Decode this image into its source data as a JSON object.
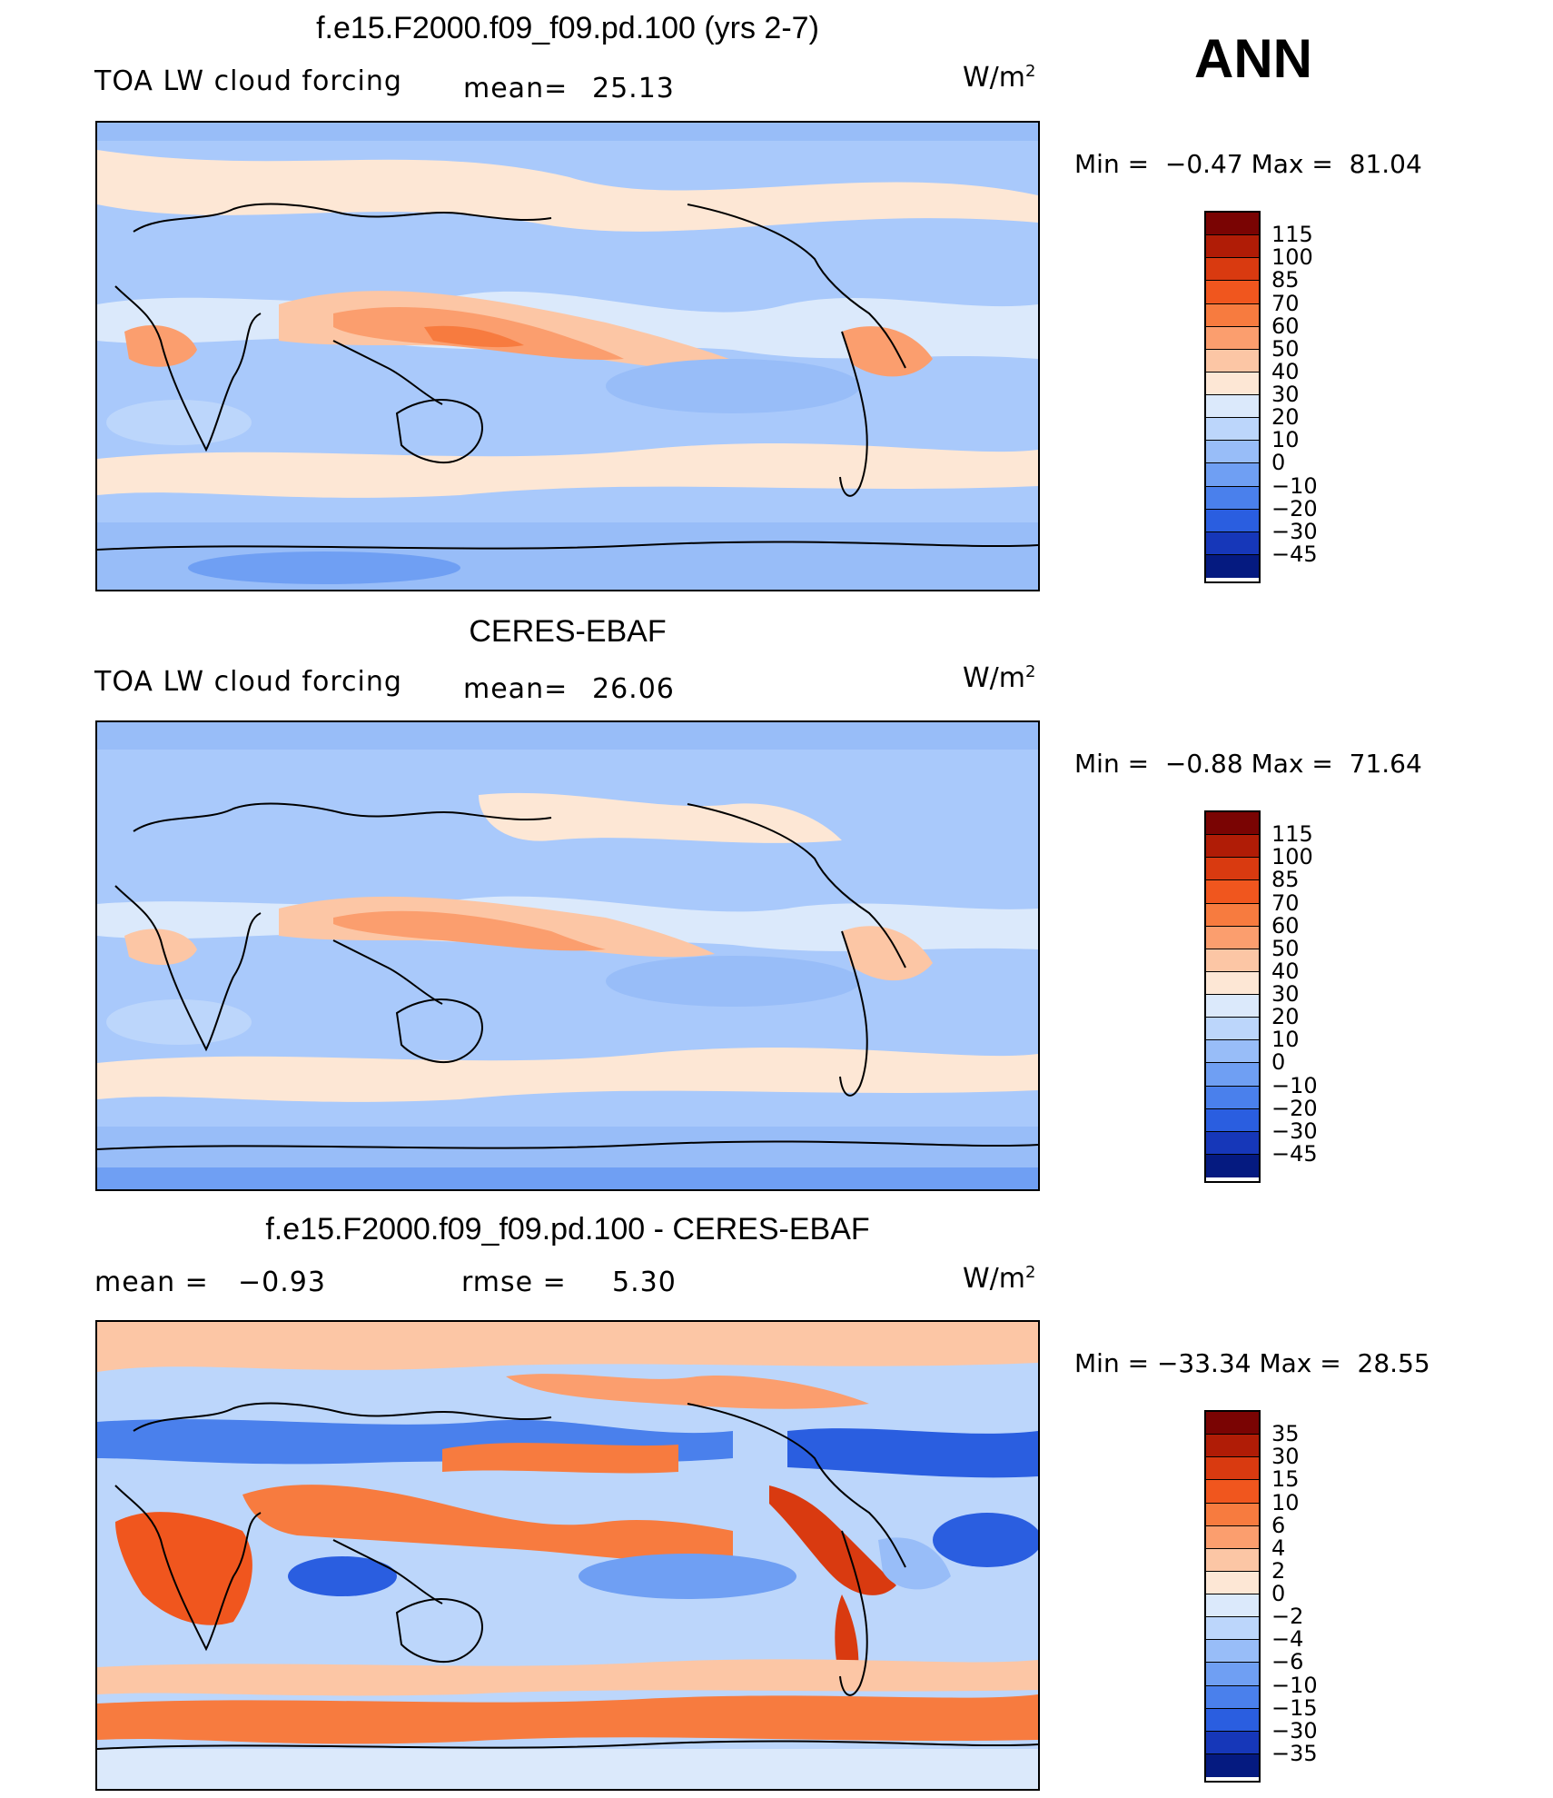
{
  "season": "ANN",
  "units_base": "W/m",
  "units_exp": "2",
  "panels": [
    {
      "title": "f.e15.F2000.f09_f09.pd.100 (yrs 2-7)",
      "left_label": "TOA LW cloud forcing",
      "stat_label": "mean=",
      "stat_value": "25.13",
      "min_label": "Min =",
      "min_value": "−0.47",
      "max_label": "Max =",
      "max_value": "81.04",
      "colorbar_labels": [
        "115",
        "100",
        "85",
        "70",
        "60",
        "50",
        "40",
        "30",
        "20",
        "10",
        "0",
        "−10",
        "−20",
        "−30",
        "−45"
      ]
    },
    {
      "title": "CERES-EBAF",
      "left_label": "TOA LW cloud forcing",
      "stat_label": "mean=",
      "stat_value": "26.06",
      "min_label": "Min =",
      "min_value": "−0.88",
      "max_label": "Max =",
      "max_value": "71.64",
      "colorbar_labels": [
        "115",
        "100",
        "85",
        "70",
        "60",
        "50",
        "40",
        "30",
        "20",
        "10",
        "0",
        "−10",
        "−20",
        "−30",
        "−45"
      ]
    },
    {
      "title": "f.e15.F2000.f09_f09.pd.100 - CERES-EBAF",
      "left_label": "mean =",
      "left_value": "−0.93",
      "stat_label": "rmse =",
      "stat_value": "5.30",
      "min_label": "Min =",
      "min_value": "−33.34",
      "max_label": "Max =",
      "max_value": "28.55",
      "colorbar_labels": [
        "35",
        "30",
        "15",
        "10",
        "6",
        "4",
        "2",
        "0",
        "−2",
        "−4",
        "−6",
        "−10",
        "−15",
        "−30",
        "−35"
      ]
    }
  ],
  "colors": {
    "ramp": [
      "#7a0403",
      "#b01c06",
      "#d93a10",
      "#f0561e",
      "#f77b3f",
      "#fb9e6e",
      "#fcc6a5",
      "#fde7d5",
      "#dbe9fb",
      "#bcd6fb",
      "#98bdf8",
      "#6f9ff3",
      "#4a80ec",
      "#2a5ee0",
      "#1637b9",
      "#051a80"
    ],
    "land_outline": "#000000"
  }
}
